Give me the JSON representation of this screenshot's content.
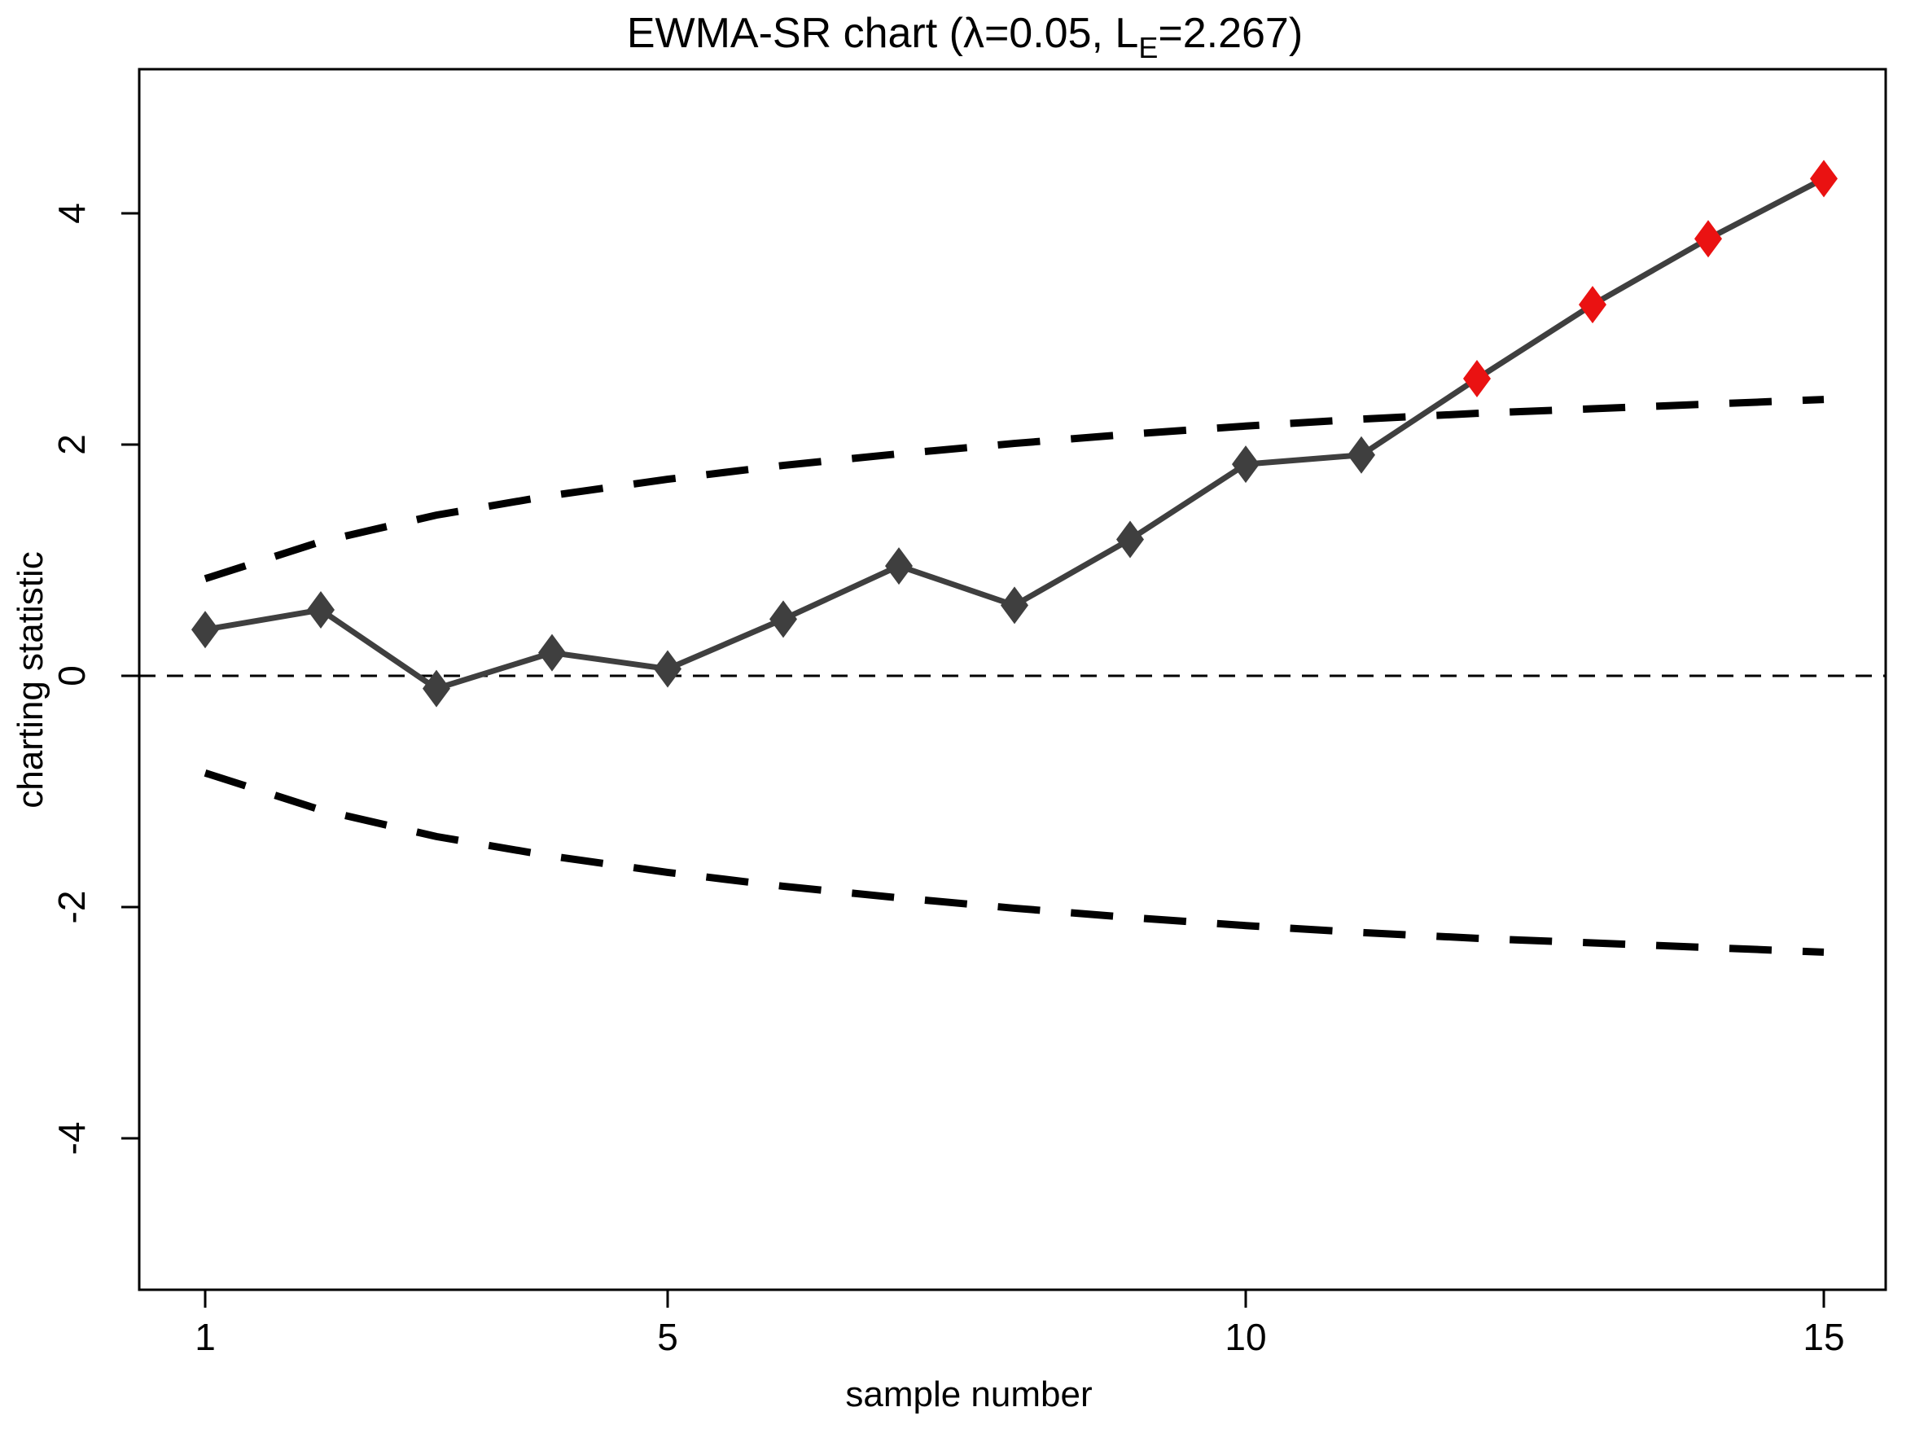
{
  "chart_data": {
    "type": "line",
    "title": {
      "full_text": "EWMA-SR chart (λ=0.05, L_E=2.267)",
      "part1": "EWMA-SR chart (λ=0.05, L",
      "subscript": "E",
      "part2": "=2.267)"
    },
    "xlabel": "sample number",
    "ylabel": "charting statistic",
    "x_ticks": [
      1,
      5,
      10,
      15
    ],
    "y_ticks": [
      -4,
      -2,
      0,
      2,
      4
    ],
    "xlim": [
      0.45,
      15.45
    ],
    "ylim": [
      -5.3,
      5.25
    ],
    "lambda": 0.05,
    "L_E": 2.267,
    "samples": [
      1,
      2,
      3,
      4,
      5,
      6,
      7,
      8,
      9,
      10,
      11,
      12,
      13,
      14,
      15
    ],
    "ewma_sr_statistic": [
      0.4,
      0.57,
      -0.11,
      0.2,
      0.06,
      0.49,
      0.95,
      0.61,
      1.18,
      1.83,
      1.91,
      2.57,
      3.21,
      3.78,
      4.3
    ],
    "out_of_control_samples": [
      12,
      13,
      14,
      15
    ],
    "upper_control_limit": [
      0.84,
      1.16,
      1.39,
      1.56,
      1.7,
      1.82,
      1.92,
      2.01,
      2.09,
      2.16,
      2.22,
      2.27,
      2.31,
      2.35,
      2.39
    ],
    "lower_control_limit": [
      -0.84,
      -1.16,
      -1.39,
      -1.56,
      -1.7,
      -1.82,
      -1.92,
      -2.01,
      -2.09,
      -2.16,
      -2.22,
      -2.27,
      -2.31,
      -2.35,
      -2.39
    ],
    "center_line": 0,
    "grid": "off",
    "legend": "none",
    "colors": {
      "series_line": "#3f3f3f",
      "in_control_marker": "#3f3f3f",
      "out_of_control_marker": "#ea1212",
      "control_limit_line": "#000000",
      "center_line_color": "#000000",
      "frame": "#000000"
    }
  }
}
